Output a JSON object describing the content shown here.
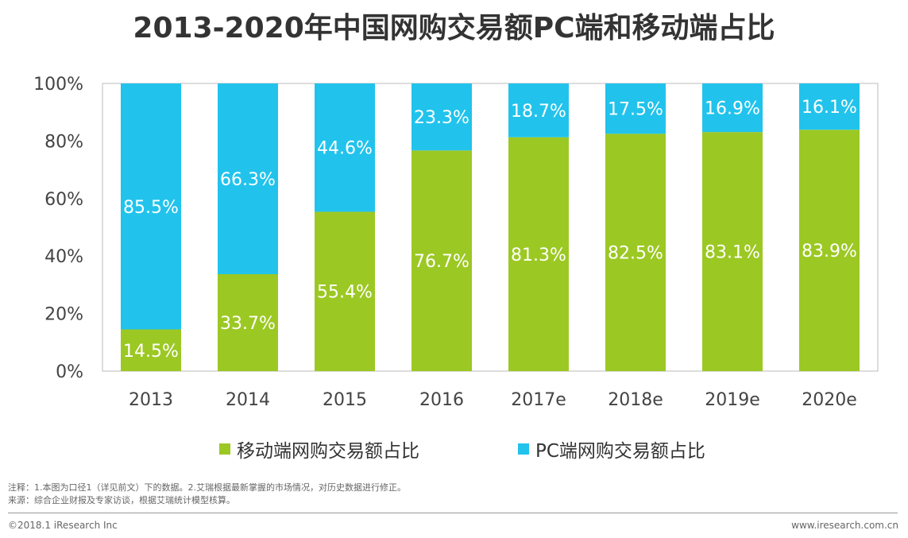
{
  "title": "2013-2020年中国网购交易额PC端和移动端占比",
  "legend": {
    "mobile": "移动端网购交易额占比",
    "pc": "PC端网购交易额占比"
  },
  "colors": {
    "mobile": "#9cc823",
    "pc": "#21c3ec",
    "label": "#ffffff",
    "axis": "#999999"
  },
  "notes": {
    "line1": "注释：1.本图为口径1（详见前文）下的数据。2.艾瑞根据最新掌握的市场情况，对历史数据进行修正。",
    "line2": "来源：综合企业财报及专家访谈，根据艾瑞统计模型核算。"
  },
  "footer": {
    "copyright": "©2018.1 iResearch Inc",
    "website": "www.iresearch.com.cn"
  },
  "chart_data": {
    "type": "bar",
    "stacked": true,
    "title": "2013-2020年中国网购交易额PC端和移动端占比",
    "categories": [
      "2013",
      "2014",
      "2015",
      "2016",
      "2017e",
      "2018e",
      "2019e",
      "2020e"
    ],
    "series": [
      {
        "name": "移动端网购交易额占比",
        "values": [
          14.5,
          33.7,
          55.4,
          76.7,
          81.3,
          82.5,
          83.1,
          83.9
        ],
        "labels": [
          "14.5%",
          "33.7%",
          "55.4%",
          "76.7%",
          "81.3%",
          "82.5%",
          "83.1%",
          "83.9%"
        ]
      },
      {
        "name": "PC端网购交易额占比",
        "values": [
          85.5,
          66.3,
          44.6,
          23.3,
          18.7,
          17.5,
          16.9,
          16.1
        ],
        "labels": [
          "85.5%",
          "66.3%",
          "44.6%",
          "23.3%",
          "18.7%",
          "17.5%",
          "16.9%",
          "16.1%"
        ]
      }
    ],
    "yticks": [
      "0%",
      "20%",
      "40%",
      "60%",
      "80%",
      "100%"
    ],
    "ylim": [
      0,
      100
    ],
    "xlabel": "",
    "ylabel": "",
    "legend_position": "bottom"
  }
}
